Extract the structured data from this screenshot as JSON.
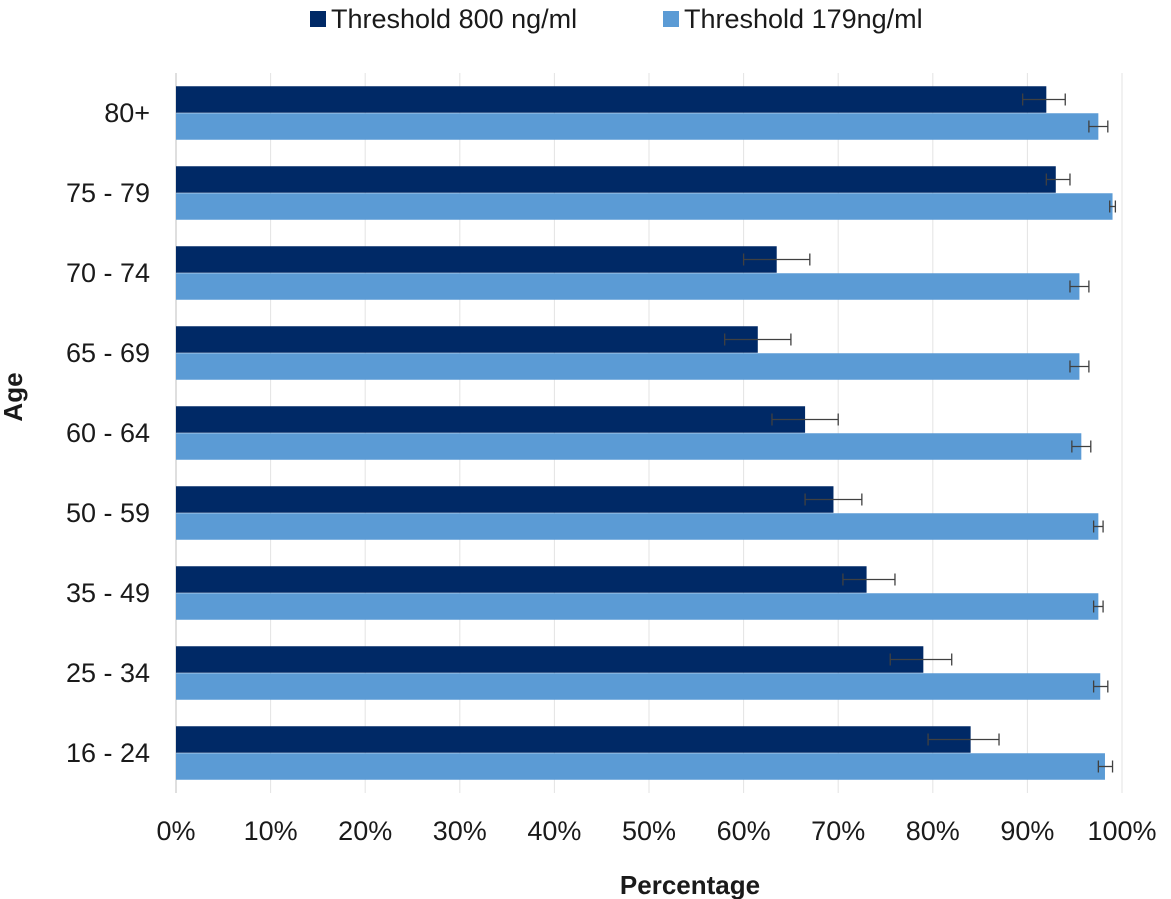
{
  "chart_data": {
    "type": "bar",
    "orientation": "horizontal",
    "categories": [
      "80+",
      "75 - 79",
      "70 - 74",
      "65 - 69",
      "60 - 64",
      "50 - 59",
      "35 - 49",
      "25 - 34",
      "16 - 24"
    ],
    "series": [
      {
        "name": "Threshold 800 ng/ml",
        "color": "#002966",
        "values": [
          92,
          93,
          63.5,
          61.5,
          66.5,
          69.5,
          73,
          79,
          84
        ],
        "error_low": [
          89.5,
          92,
          60,
          58,
          63,
          66.5,
          70.5,
          75.5,
          79.5
        ],
        "error_high": [
          94,
          94.5,
          67,
          65,
          70,
          72.5,
          76,
          82,
          87
        ]
      },
      {
        "name": "Threshold 179ng/ml",
        "color": "#5b9bd5",
        "values": [
          97.5,
          99,
          95.5,
          95.5,
          95.7,
          97.5,
          97.5,
          97.7,
          98.2
        ],
        "error_low": [
          96.5,
          98.7,
          94.5,
          94.5,
          94.7,
          97,
          97,
          97,
          97.5
        ],
        "error_high": [
          98.5,
          99.3,
          96.5,
          96.5,
          96.7,
          98,
          98,
          98.5,
          99
        ]
      }
    ],
    "xlabel": "Percentage",
    "ylabel": "Age",
    "xlim": [
      0,
      100
    ],
    "xticks": [
      "0%",
      "10%",
      "20%",
      "30%",
      "40%",
      "50%",
      "60%",
      "70%",
      "80%",
      "90%",
      "100%"
    ],
    "grid": "vertical",
    "legend_position": "top"
  }
}
